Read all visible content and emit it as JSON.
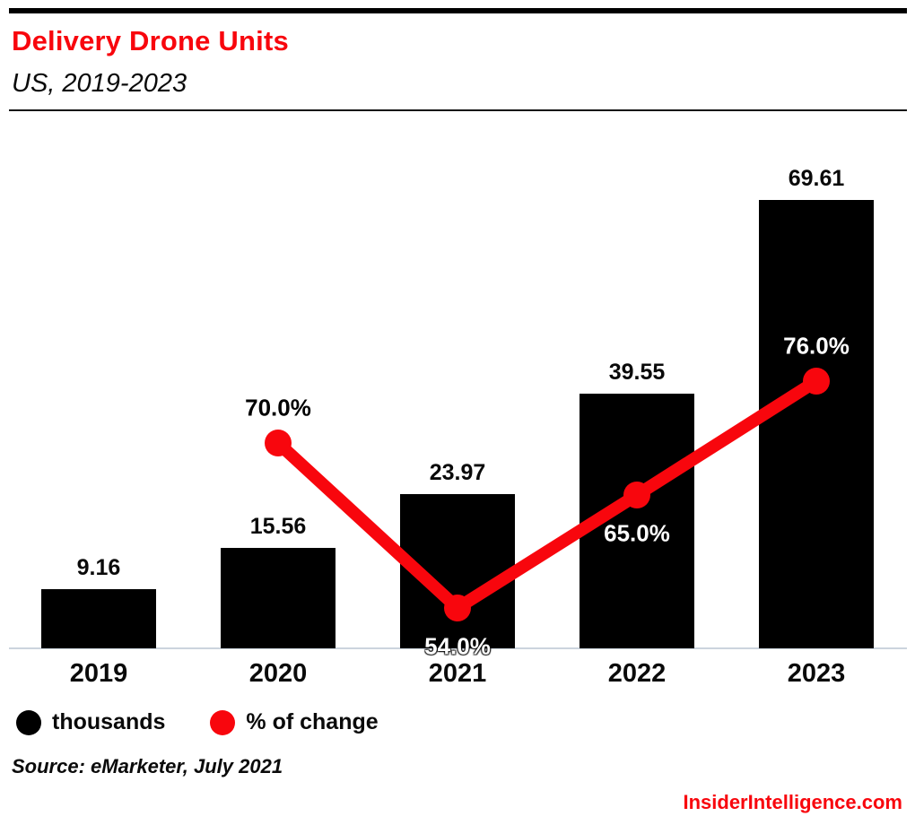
{
  "header": {
    "title": "Delivery Drone Units",
    "subtitle": "US, 2019-2023"
  },
  "colors": {
    "accent_red": "#f8060d",
    "bar_black": "#000000",
    "axis_line": "#ccd4de",
    "label_light": "#ffffff",
    "label_dark": "#000000"
  },
  "legend": {
    "items": [
      {
        "label": "thousands",
        "color": "#000000"
      },
      {
        "label": "% of change",
        "color": "#f8060d"
      }
    ]
  },
  "source": "Source: eMarketer, July 2021",
  "footer": "InsiderIntelligence.com",
  "chart_data": {
    "type": "bar",
    "title": "Delivery Drone Units",
    "subtitle": "US, 2019-2023",
    "categories": [
      "2019",
      "2020",
      "2021",
      "2022",
      "2023"
    ],
    "series": [
      {
        "name": "thousands",
        "type": "bar",
        "color": "#000000",
        "values": [
          9.16,
          15.56,
          23.97,
          39.55,
          69.61
        ],
        "labels": [
          "9.16",
          "15.56",
          "23.97",
          "39.55",
          "69.61"
        ]
      },
      {
        "name": "% of change",
        "type": "line",
        "color": "#f8060d",
        "points": [
          {
            "category": "2020",
            "value": 70.0,
            "label": "70.0%",
            "label_pos": "above",
            "label_color": "#000000"
          },
          {
            "category": "2021",
            "value": 54.0,
            "label": "54.0%",
            "label_pos": "below",
            "label_color": "#ffffff"
          },
          {
            "category": "2022",
            "value": 65.0,
            "label": "65.0%",
            "label_pos": "below",
            "label_color": "#ffffff"
          },
          {
            "category": "2023",
            "value": 76.0,
            "label": "76.0%",
            "label_pos": "above",
            "label_color": "#ffffff"
          }
        ]
      }
    ],
    "xlabel": "",
    "ylabel": "",
    "grid": false,
    "y_axis_shown": false,
    "legend_position": "bottom-left"
  }
}
